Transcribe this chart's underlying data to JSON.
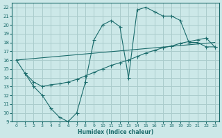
{
  "bg_color": "#cce8e8",
  "grid_color": "#aacccc",
  "line_color": "#1a6b6b",
  "xlabel": "Humidex (Indice chaleur)",
  "xlim": [
    -0.5,
    23.5
  ],
  "ylim": [
    9,
    22.5
  ],
  "yticks": [
    9,
    10,
    11,
    12,
    13,
    14,
    15,
    16,
    17,
    18,
    19,
    20,
    21,
    22
  ],
  "xticks": [
    0,
    1,
    2,
    3,
    4,
    5,
    6,
    7,
    8,
    9,
    10,
    11,
    12,
    13,
    14,
    15,
    16,
    17,
    18,
    19,
    20,
    21,
    22,
    23
  ],
  "line1_x": [
    0,
    1,
    2,
    3,
    4,
    5,
    6,
    7,
    8,
    9,
    10,
    11,
    12,
    13,
    14,
    15,
    16,
    17,
    18,
    19,
    20,
    21,
    22,
    23
  ],
  "line1_y": [
    16,
    14.5,
    13,
    12,
    10.5,
    9.5,
    9,
    10,
    13.5,
    18.3,
    20,
    20.5,
    19.8,
    14,
    21.7,
    22,
    21.5,
    21,
    21,
    20.5,
    18,
    18,
    17.5,
    17.5
  ],
  "line2_x": [
    0,
    23
  ],
  "line2_y": [
    16.0,
    18.0
  ],
  "line3_x": [
    1,
    2,
    3,
    4,
    5,
    6,
    7,
    8,
    9,
    10,
    11,
    12,
    13,
    14,
    15,
    16,
    17,
    18,
    19,
    20,
    21,
    22,
    23
  ],
  "line3_y": [
    14.5,
    13.5,
    13.0,
    13.2,
    13.3,
    13.5,
    13.8,
    14.2,
    14.6,
    15.0,
    15.4,
    15.7,
    16.0,
    16.4,
    16.8,
    17.1,
    17.4,
    17.6,
    17.9,
    18.1,
    18.3,
    18.5,
    17.5
  ]
}
